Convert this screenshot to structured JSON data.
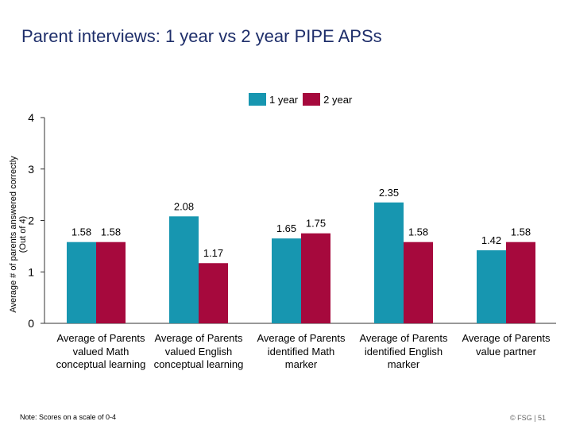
{
  "slide": {
    "title": "Parent interviews: 1 year vs 2 year PIPE APSs",
    "note": "Note: Scores on a scale of 0-4",
    "footer": "© FSG  |  51"
  },
  "chart_data": {
    "type": "bar",
    "title": "Parent interviews: 1 year vs 2 year PIPE APSs",
    "xlabel": "",
    "ylabel": "Average # of parents answered correctly (Out of 4)",
    "ylim": [
      0,
      4
    ],
    "yticks": [
      0,
      1,
      2,
      3,
      4
    ],
    "legend_position": "top-center",
    "categories": [
      "Average of Parents valued Math conceptual learning",
      "Average of Parents valued English conceptual learning",
      "Average of Parents identified Math marker",
      "Average of Parents identified English marker",
      "Average of Parents value partner"
    ],
    "series": [
      {
        "name": "1 year",
        "color": "#1796b0",
        "values": [
          1.58,
          2.08,
          1.65,
          2.35,
          1.42
        ]
      },
      {
        "name": "2 year",
        "color": "#a6093d",
        "values": [
          1.58,
          1.17,
          1.75,
          1.58,
          1.58
        ]
      }
    ]
  }
}
